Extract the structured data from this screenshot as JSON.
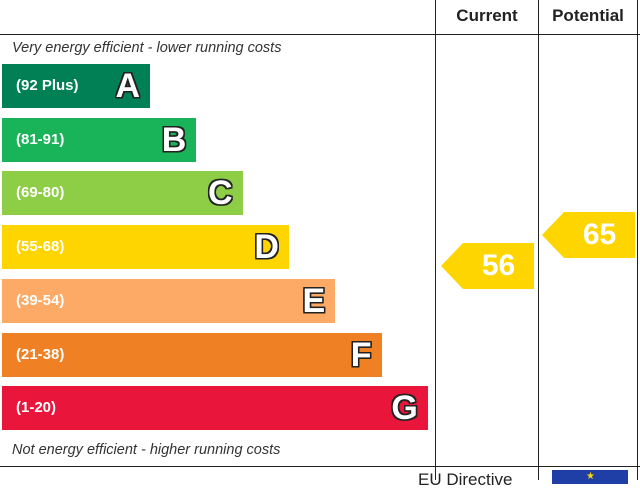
{
  "header": {
    "current_label": "Current",
    "potential_label": "Potential"
  },
  "captions": {
    "top": "Very energy efficient - lower running costs",
    "bottom": "Not energy efficient - higher running costs"
  },
  "footer": {
    "text": "EU Directive"
  },
  "chart_data": {
    "type": "bar",
    "bands": [
      {
        "letter": "A",
        "range": "(92 Plus)",
        "min": 92,
        "max": 100,
        "color": "#008054"
      },
      {
        "letter": "B",
        "range": "(81-91)",
        "min": 81,
        "max": 91,
        "color": "#19b459"
      },
      {
        "letter": "C",
        "range": "(69-80)",
        "min": 69,
        "max": 80,
        "color": "#8dce46"
      },
      {
        "letter": "D",
        "range": "(55-68)",
        "min": 55,
        "max": 68,
        "color": "#ffd500"
      },
      {
        "letter": "E",
        "range": "(39-54)",
        "min": 39,
        "max": 54,
        "color": "#fcaa65"
      },
      {
        "letter": "F",
        "range": "(21-38)",
        "min": 21,
        "max": 38,
        "color": "#ef8023"
      },
      {
        "letter": "G",
        "range": "(1-20)",
        "min": 1,
        "max": 20,
        "color": "#e9153b"
      }
    ],
    "ratings": {
      "current": {
        "value": "56",
        "band": "D",
        "color": "#ffd500"
      },
      "potential": {
        "value": "65",
        "band": "D",
        "color": "#ffd500"
      }
    }
  }
}
